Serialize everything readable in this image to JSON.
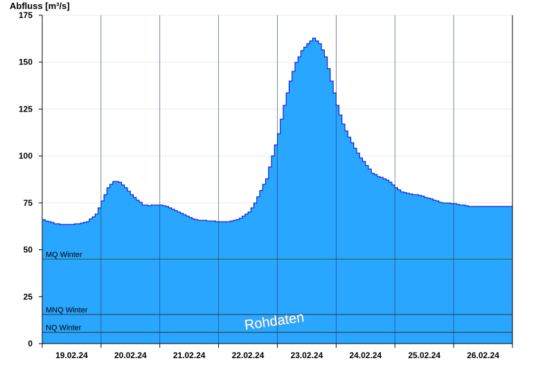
{
  "chart_data": {
    "type": "area",
    "ylabel": "Abfluss [m³/s]",
    "ylim": [
      0,
      175
    ],
    "y_ticks": [
      0,
      25,
      50,
      75,
      100,
      125,
      150,
      175
    ],
    "x_tick_labels": [
      "19.02.24",
      "20.02.24",
      "21.02.24",
      "22.02.24",
      "23.02.24",
      "24.02.24",
      "25.02.24",
      "26.02.24"
    ],
    "x_range_days": [
      0,
      8
    ],
    "grid": true,
    "colors": {
      "area_fill": "#29a6ff",
      "area_line": "#0000cc",
      "ref_line": "#555555"
    },
    "series": [
      {
        "x_days": [
          0.0,
          0.1,
          0.2,
          0.3,
          0.5,
          0.6,
          0.75,
          0.9,
          1.0,
          1.1,
          1.2,
          1.3,
          1.4,
          1.5,
          1.6,
          1.7,
          1.8,
          1.9,
          2.0,
          2.1,
          2.2,
          2.4,
          2.6,
          2.8,
          3.0,
          3.15,
          3.3,
          3.5,
          3.6,
          3.8,
          3.9,
          4.0,
          4.1,
          4.2,
          4.3,
          4.4,
          4.5,
          4.6,
          4.7,
          4.8,
          4.9,
          5.0,
          5.1,
          5.2,
          5.3,
          5.4,
          5.5,
          5.6,
          5.7,
          5.8,
          5.9,
          6.0,
          6.1,
          6.2,
          6.3,
          6.4,
          6.5,
          6.6,
          6.7,
          6.8,
          6.9,
          7.0,
          7.1,
          7.2,
          7.3,
          7.4,
          7.5,
          7.6,
          7.7,
          7.8,
          7.9,
          8.0
        ],
        "values": [
          66,
          65,
          64,
          63.5,
          63.5,
          64,
          65,
          69,
          76,
          83,
          86.5,
          86,
          83,
          79.5,
          76.5,
          74,
          73.5,
          74,
          74,
          73,
          71.5,
          68.5,
          66,
          65.5,
          65,
          65,
          66,
          70,
          75,
          88,
          100,
          112,
          127,
          140,
          150,
          156,
          160,
          163,
          160,
          153,
          140,
          127,
          117,
          110,
          104,
          99,
          95,
          91,
          89,
          88,
          86,
          83,
          81,
          80,
          79.5,
          79,
          78,
          77,
          76,
          75,
          75,
          74.5,
          74,
          73.5,
          73,
          73,
          73,
          73,
          73,
          73,
          73,
          73
        ]
      }
    ],
    "reference_lines": [
      {
        "label": "MQ Winter",
        "value": 45
      },
      {
        "label": "MNQ Winter",
        "value": 15.5
      },
      {
        "label": "NQ Winter",
        "value": 6
      }
    ],
    "watermark": "Rohdaten"
  }
}
